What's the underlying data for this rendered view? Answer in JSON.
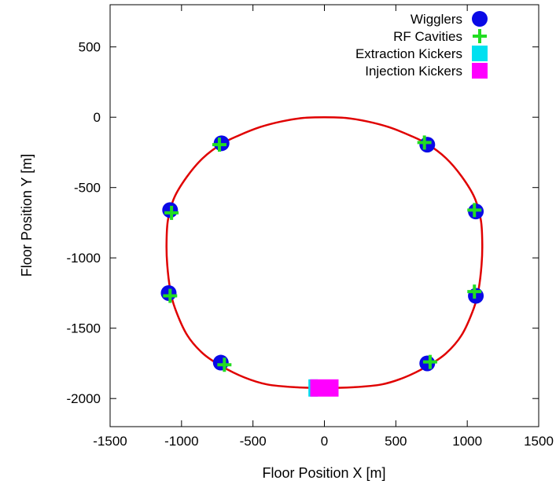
{
  "chart_data": {
    "type": "scatter",
    "title": "",
    "xlabel": "Floor Position X [m]",
    "ylabel": "Floor Position Y [m]",
    "xlim": [
      -1500,
      1500
    ],
    "ylim": [
      -2200,
      800
    ],
    "x_ticks": [
      -1500,
      -1000,
      -500,
      0,
      500,
      1000,
      1500
    ],
    "y_ticks": [
      -2000,
      -1500,
      -1000,
      -500,
      0,
      500
    ],
    "grid": false,
    "legend_position": "top-right",
    "ring": {
      "color": "#e00000",
      "x": [
        0,
        150,
        300,
        450,
        600,
        720,
        850,
        960,
        1050,
        1095,
        1105,
        1100,
        1080,
        1045,
        960,
        850,
        720,
        560,
        400,
        200,
        0,
        -200,
        -400,
        -560,
        -720,
        -850,
        -960,
        -1045,
        -1080,
        -1100,
        -1105,
        -1095,
        -1050,
        -960,
        -850,
        -720,
        -600,
        -450,
        -300,
        -150,
        0
      ],
      "y": [
        0,
        -5,
        -30,
        -70,
        -130,
        -190,
        -290,
        -420,
        -570,
        -730,
        -900,
        -1050,
        -1220,
        -1360,
        -1550,
        -1680,
        -1770,
        -1850,
        -1900,
        -1920,
        -1925,
        -1920,
        -1900,
        -1850,
        -1770,
        -1680,
        -1550,
        -1360,
        -1220,
        -1050,
        -900,
        -730,
        -570,
        -420,
        -290,
        -190,
        -130,
        -70,
        -30,
        -5,
        0
      ]
    },
    "series": [
      {
        "name": "Wigglers",
        "marker": "circle",
        "color": "#0a0ae6",
        "x": [
          -720,
          720,
          -1080,
          1060,
          -1090,
          1060,
          -725,
          720
        ],
        "y": [
          -185,
          -195,
          -660,
          -670,
          -1250,
          -1270,
          -1745,
          -1750
        ]
      },
      {
        "name": "RF Cavities",
        "marker": "plus",
        "color": "#22dd22",
        "x": [
          -735,
          700,
          -1070,
          1050,
          -1080,
          1050,
          -700,
          740
        ],
        "y": [
          -195,
          -180,
          -680,
          -660,
          -1270,
          -1240,
          -1760,
          -1740
        ]
      },
      {
        "name": "Extraction Kickers",
        "marker": "square",
        "color": "#00e0f0",
        "x": [
          -90
        ],
        "y": [
          -1925
        ]
      },
      {
        "name": "Injection Kickers",
        "marker": "square",
        "color": "#ff00ff",
        "x": [
          0
        ],
        "y": [
          -1925
        ]
      }
    ]
  }
}
